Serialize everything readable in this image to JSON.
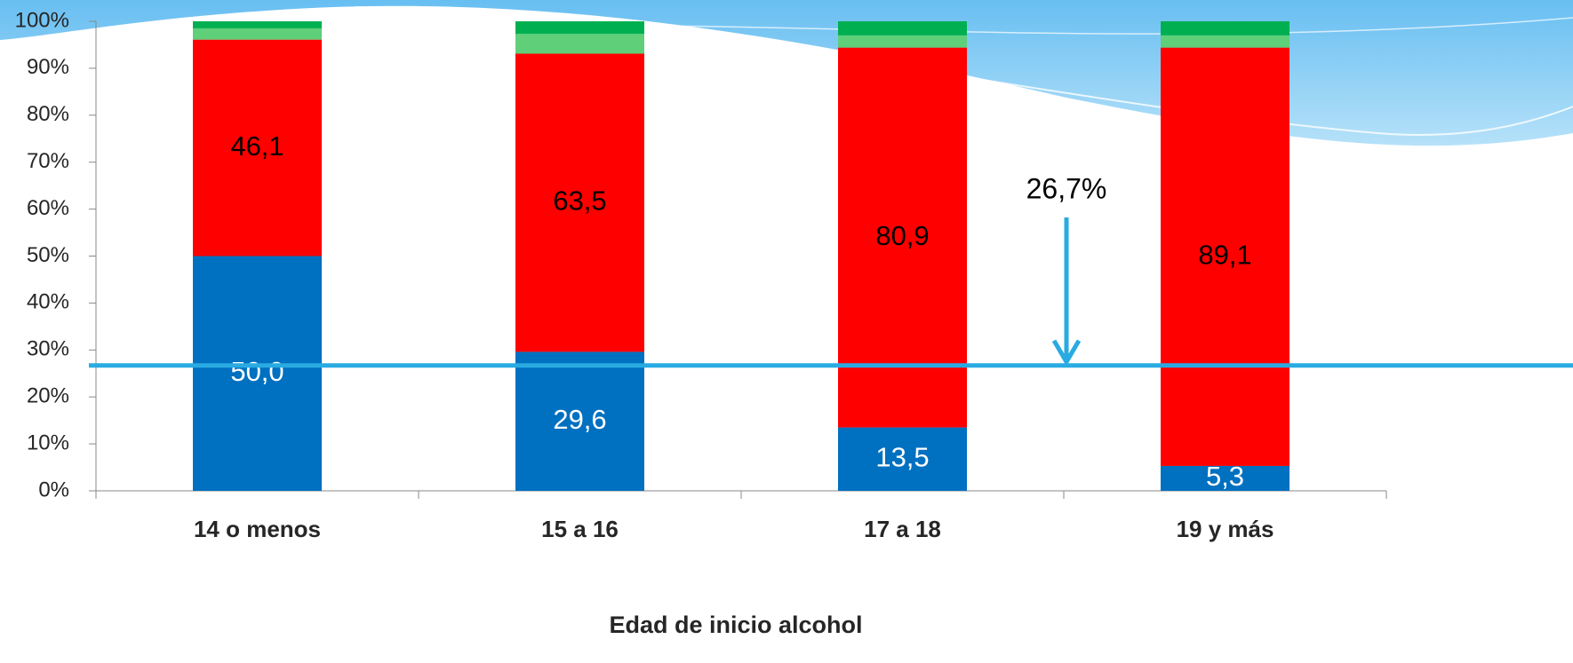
{
  "chart_data": {
    "type": "stacked_bar",
    "x_label": "Edad de inicio alcohol",
    "categories": [
      "14 o menos",
      "15 a 16",
      "17 a 18",
      "19 y más"
    ],
    "series": [
      {
        "color": "#0070c0",
        "values": [
          50.0,
          29.6,
          13.5,
          5.3
        ],
        "value_labels": [
          "50,0",
          "29,6",
          "13,5",
          "5,3"
        ],
        "label_color": "#ffffff"
      },
      {
        "color": "#ff0000",
        "values": [
          46.1,
          63.5,
          80.9,
          89.1
        ],
        "value_labels": [
          "46,1",
          "63,5",
          "80,9",
          "89,1"
        ],
        "label_color": "#000000"
      },
      {
        "color": "#5fcf7a",
        "values": [
          2.4,
          4.2,
          2.6,
          2.6
        ]
      },
      {
        "color": "#00b050",
        "values": [
          1.5,
          2.7,
          3.0,
          3.0
        ]
      }
    ],
    "ylim": [
      0,
      100
    ],
    "yticks": [
      {
        "value": 0,
        "label": "0%"
      },
      {
        "value": 10,
        "label": "10%"
      },
      {
        "value": 20,
        "label": "20%"
      },
      {
        "value": 30,
        "label": "30%"
      },
      {
        "value": 40,
        "label": "40%"
      },
      {
        "value": 50,
        "label": "50%"
      },
      {
        "value": 60,
        "label": "60%"
      },
      {
        "value": 70,
        "label": "70%"
      },
      {
        "value": 80,
        "label": "80%"
      },
      {
        "value": 90,
        "label": "90%"
      },
      {
        "value": 100,
        "label": "100%"
      }
    ],
    "reference_line": {
      "value": 26.7,
      "label": "26,7%",
      "color": "#29abe2"
    }
  }
}
